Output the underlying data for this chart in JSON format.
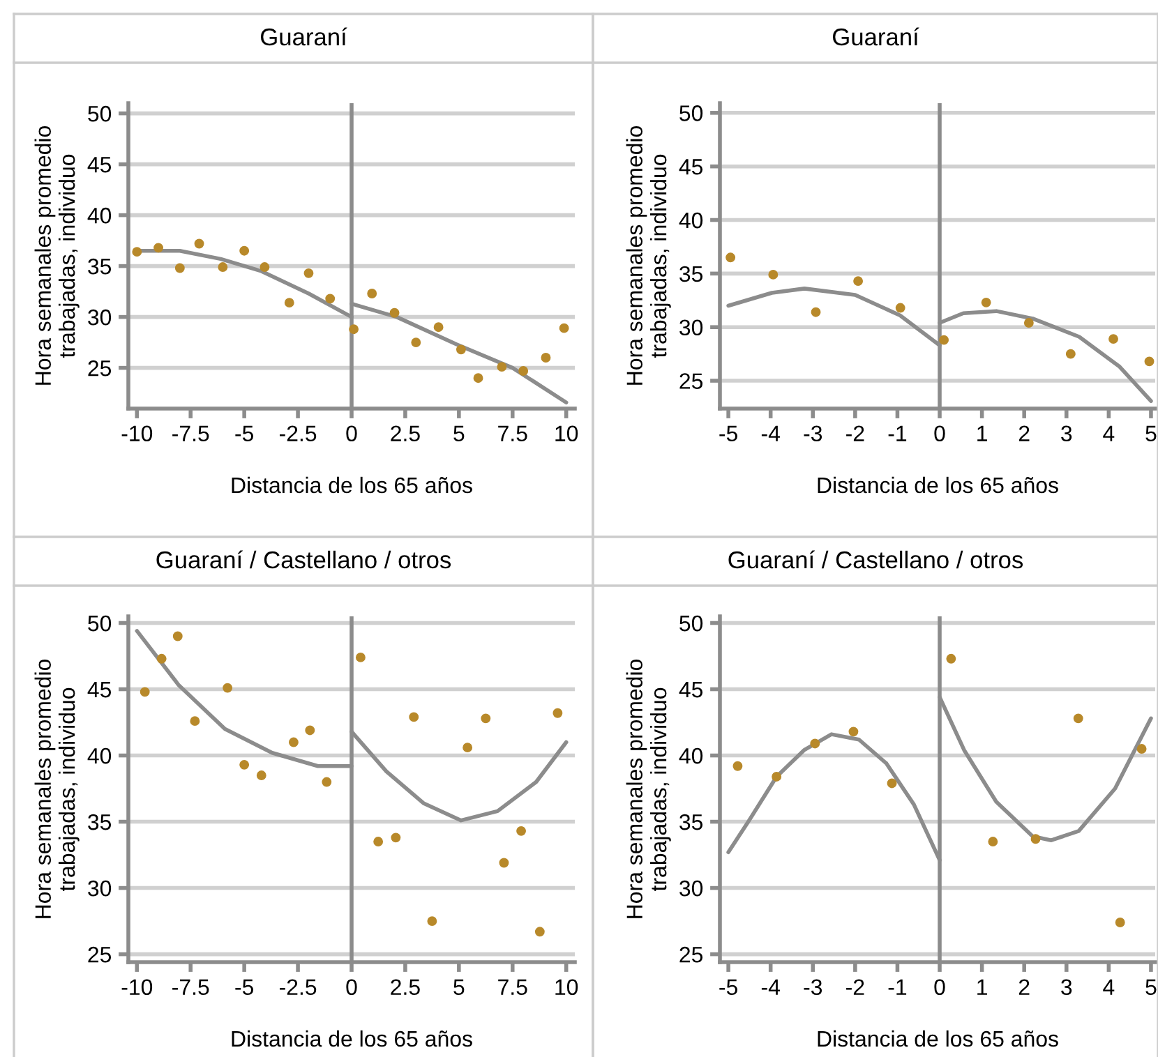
{
  "chart_data": [
    {
      "type": "scatter",
      "title": "Guaraní",
      "xlabel": "Distancia de los 65 años",
      "ylabel": "Hora semanales promedio\ntrabajadas, individuo",
      "xlim": [
        -10.4,
        10.4
      ],
      "ylim": [
        21,
        51
      ],
      "xticks": [
        -10,
        -7.5,
        -5,
        -2.5,
        0,
        2.5,
        5,
        7.5,
        10
      ],
      "yticks": [
        25,
        30,
        35,
        40,
        45,
        50
      ],
      "grid": "y",
      "legend": false,
      "ref_lines": [
        {
          "axis": "x",
          "value": 0,
          "color": "#8c8c8c"
        }
      ],
      "series": [
        {
          "marker": "circle",
          "color": "#b8892a",
          "x": [
            -10,
            -9,
            -8,
            -7.1,
            -6,
            -5,
            -4.05,
            -2.9,
            -2,
            -1,
            0.1,
            0.95,
            2,
            3,
            4.05,
            5.1,
            5.9,
            7,
            8,
            9.05,
            9.9
          ],
          "values": [
            36.4,
            36.8,
            34.8,
            37.2,
            34.9,
            36.5,
            34.9,
            31.4,
            34.3,
            31.8,
            28.8,
            32.3,
            30.4,
            27.5,
            29.0,
            26.8,
            24.0,
            25.1,
            24.7,
            26.0,
            28.9
          ]
        },
        {
          "type": "line",
          "color": "#8c8c8c",
          "x": [
            -10,
            -8,
            -6.1,
            -4.2,
            -2,
            0
          ],
          "values": [
            36.5,
            36.5,
            35.7,
            34.5,
            32.3,
            30.0
          ]
        },
        {
          "type": "line",
          "color": "#8c8c8c",
          "x": [
            0,
            2.1,
            4.9,
            7.5,
            10
          ],
          "values": [
            31.3,
            30.0,
            27.3,
            25.0,
            21.6
          ]
        }
      ]
    },
    {
      "type": "scatter",
      "title": "Guaraní",
      "xlabel": "Distancia de los 65 años",
      "ylabel": "Hora semanales promedio\ntrabajadas, individuo",
      "xlim": [
        -5.2,
        5.1
      ],
      "ylim": [
        22.4,
        50.9
      ],
      "xticks": [
        -5,
        -4,
        -3,
        -2,
        -1,
        0,
        1,
        2,
        3,
        4,
        5
      ],
      "yticks": [
        25,
        30,
        35,
        40,
        45,
        50
      ],
      "grid": "y",
      "legend": false,
      "ref_lines": [
        {
          "axis": "x",
          "value": 0,
          "color": "#8c8c8c"
        }
      ],
      "series": [
        {
          "marker": "circle",
          "color": "#b8892a",
          "x": [
            -4.95,
            -3.94,
            -2.93,
            -1.93,
            -0.93,
            0.1,
            1.1,
            2.11,
            3.1,
            4.11,
            4.96
          ],
          "values": [
            36.5,
            34.9,
            31.4,
            34.3,
            31.8,
            28.8,
            32.3,
            30.4,
            27.5,
            28.9,
            26.8
          ]
        },
        {
          "type": "line",
          "color": "#8c8c8c",
          "x": [
            -5,
            -3.97,
            -3.2,
            -2.0,
            -0.94,
            0
          ],
          "values": [
            32.0,
            33.2,
            33.6,
            33.0,
            31.1,
            28.3
          ]
        },
        {
          "type": "line",
          "color": "#8c8c8c",
          "x": [
            0,
            0.56,
            1.34,
            2.2,
            3.3,
            4.26,
            5.0
          ],
          "values": [
            30.4,
            31.3,
            31.5,
            30.8,
            29.1,
            26.3,
            23.1
          ]
        }
      ]
    },
    {
      "type": "scatter",
      "title": "Guaraní / Castellano / otros",
      "xlabel": "Distancia de los 65 años",
      "ylabel": "Hora semanales promedio\ntrabajadas, individuo",
      "xlim": [
        -10.4,
        10.4
      ],
      "ylim": [
        24.4,
        50.5
      ],
      "xticks": [
        -10,
        -7.5,
        -5,
        -2.5,
        0,
        2.5,
        5,
        7.5,
        10
      ],
      "yticks": [
        25,
        30,
        35,
        40,
        45,
        50
      ],
      "grid": "y",
      "legend": false,
      "ref_lines": [
        {
          "axis": "x",
          "value": 0,
          "color": "#8c8c8c"
        }
      ],
      "series": [
        {
          "marker": "circle",
          "color": "#b8892a",
          "x": [
            -9.63,
            -8.85,
            -8.1,
            -7.3,
            -5.78,
            -5.0,
            -4.2,
            -2.7,
            -1.94,
            -1.16,
            0.42,
            1.24,
            2.06,
            2.9,
            3.75,
            5.4,
            6.25,
            7.1,
            7.9,
            8.77,
            9.6
          ],
          "values": [
            44.8,
            47.3,
            49.0,
            42.6,
            45.1,
            39.3,
            38.5,
            41.0,
            41.9,
            38.0,
            47.4,
            33.5,
            33.8,
            42.9,
            27.5,
            40.6,
            42.8,
            31.9,
            34.3,
            26.7,
            43.2
          ]
        },
        {
          "type": "line",
          "color": "#8c8c8c",
          "x": [
            -10,
            -8.05,
            -5.9,
            -3.7,
            -1.57,
            0
          ],
          "values": [
            49.4,
            45.3,
            42.0,
            40.2,
            39.2,
            39.2
          ]
        },
        {
          "type": "line",
          "color": "#8c8c8c",
          "x": [
            0,
            1.62,
            3.35,
            5.1,
            6.8,
            8.6,
            10
          ],
          "values": [
            41.8,
            38.8,
            36.4,
            35.1,
            35.8,
            38.0,
            41.0
          ]
        }
      ]
    },
    {
      "type": "scatter",
      "title": "Guaraní / Castellano / otros",
      "xlabel": "Distancia de los 65 años",
      "ylabel": "Hora semanales promedio\ntrabajadas, individuo",
      "xlim": [
        -5.2,
        5.1
      ],
      "ylim": [
        24.4,
        50.5
      ],
      "xticks": [
        -5,
        -4,
        -3,
        -2,
        -1,
        0,
        1,
        2,
        3,
        4,
        5
      ],
      "yticks": [
        25,
        30,
        35,
        40,
        45,
        50
      ],
      "grid": "y",
      "legend": false,
      "ref_lines": [
        {
          "axis": "x",
          "value": 0,
          "color": "#8c8c8c"
        }
      ],
      "series": [
        {
          "marker": "circle",
          "color": "#b8892a",
          "x": [
            -4.78,
            -3.86,
            -2.95,
            -2.04,
            -1.13,
            0.27,
            1.26,
            2.27,
            3.28,
            4.27,
            4.78
          ],
          "values": [
            39.2,
            38.4,
            40.9,
            41.8,
            37.9,
            47.3,
            33.5,
            33.7,
            42.8,
            27.4,
            40.5
          ]
        },
        {
          "type": "line",
          "color": "#8c8c8c",
          "x": [
            -5,
            -4.51,
            -3.86,
            -3.21,
            -2.56,
            -1.91,
            -1.26,
            -0.61,
            0
          ],
          "values": [
            32.7,
            35.1,
            38.4,
            40.4,
            41.6,
            41.2,
            39.4,
            36.3,
            32.1
          ]
        },
        {
          "type": "line",
          "color": "#8c8c8c",
          "x": [
            0,
            0.58,
            1.34,
            2.2,
            2.64,
            3.29,
            4.15,
            5.0
          ],
          "values": [
            44.4,
            40.4,
            36.5,
            33.9,
            33.6,
            34.3,
            37.5,
            42.8
          ]
        }
      ]
    }
  ]
}
